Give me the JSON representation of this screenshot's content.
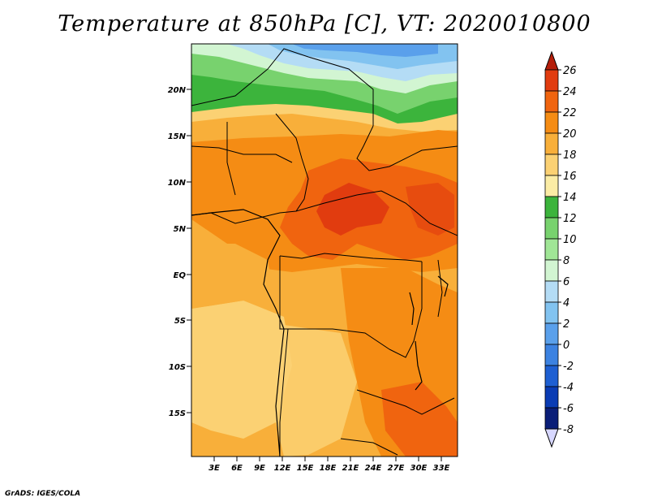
{
  "title": "Temperature at 850hPa [C], VT: 2020010800",
  "credit": "GrADS: IGES/COLA",
  "lat_labels": [
    "20N",
    "15N",
    "10N",
    "5N",
    "EQ",
    "5S",
    "10S",
    "15S"
  ],
  "lon_labels": [
    "3E",
    "6E",
    "9E",
    "12E",
    "15E",
    "18E",
    "21E",
    "24E",
    "27E",
    "30E",
    "33E"
  ],
  "colorbar": {
    "levels": [
      "26",
      "24",
      "22",
      "20",
      "18",
      "16",
      "14",
      "12",
      "10",
      "8",
      "6",
      "4",
      "2",
      "0",
      "-2",
      "-4",
      "-6",
      "-8"
    ],
    "colors": [
      "#b51e0a",
      "#e13c0f",
      "#f0640f",
      "#f58c14",
      "#f8af3a",
      "#fbd173",
      "#fbeca5",
      "#3cb43c",
      "#78d26e",
      "#a0e696",
      "#d2f5d2",
      "#b4dcf5",
      "#82c3f0",
      "#5aa0eb",
      "#3c82e1",
      "#1e5fd2",
      "#0a3cb4",
      "#0a1e78",
      "#d7d7ff"
    ]
  },
  "map": {
    "region": "Central Africa",
    "lat_range": [
      "19S",
      "24N"
    ],
    "lon_range": [
      "0E",
      "35E"
    ]
  }
}
